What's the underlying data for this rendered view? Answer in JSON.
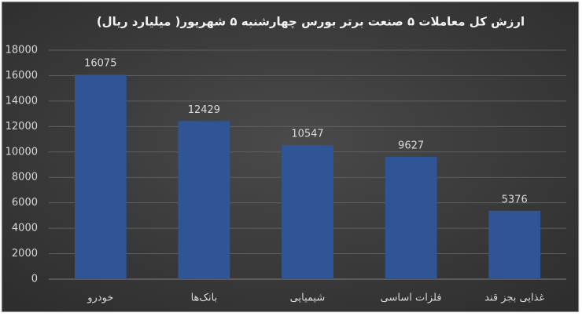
{
  "chart_data": {
    "type": "bar",
    "title": "ارزش کل معاملات ۵ صنعت برتر بورس چهارشنبه ۵ شهریور( میلیارد ریال)",
    "categories": [
      "خودرو",
      "بانک‌ها",
      "شیمیایی",
      "فلزات اساسی",
      "غذایی بجز قند"
    ],
    "values": [
      16075,
      12429,
      10547,
      9627,
      5376
    ],
    "color": "#2f5597",
    "ylim": [
      0,
      18000
    ],
    "yticks": [
      0,
      2000,
      4000,
      6000,
      8000,
      10000,
      12000,
      14000,
      16000,
      18000
    ],
    "grid": true
  }
}
